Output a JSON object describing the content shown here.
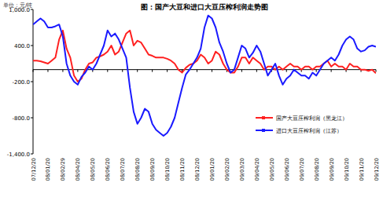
{
  "chart_data": {
    "type": "line",
    "title": "图：国产大豆和进口大豆压榨利润走势图",
    "y_label": "单位：元/吨",
    "categories": [
      "07/12/20",
      null,
      null,
      null,
      "08/01/20",
      null,
      null,
      null,
      "08/02/29",
      null,
      null,
      null,
      "08/04/20",
      null,
      null,
      null,
      "08/05/20",
      null,
      null,
      null,
      "08/06/20",
      null,
      null,
      null,
      "08/07/20",
      null,
      null,
      null,
      "08/08/20",
      null,
      null,
      null,
      "08/09/20",
      null,
      null,
      null,
      "08/10/20",
      null,
      null,
      null,
      "08/11/20",
      null,
      null,
      null,
      "08/12/20",
      null,
      null,
      null,
      "09/01/20",
      null,
      null,
      null,
      "09/02/20",
      null,
      null,
      null,
      "09/03/20",
      null,
      null,
      null,
      "09/04/20",
      null,
      null,
      null,
      "09/05/20",
      null,
      null,
      null,
      "09/06/20",
      null,
      null,
      null,
      "09/07/20",
      null,
      null,
      null,
      "09/08/20",
      null,
      null,
      null,
      "09/09/20",
      null,
      null,
      null,
      "09/10/20",
      null,
      null,
      null,
      "09/11/20",
      null,
      null,
      null,
      "09/12/20"
    ],
    "series": [
      {
        "name": "国产大豆压榨利润（黑龙江）",
        "color": "#ff2020",
        "values": [
          150,
          150,
          140,
          120,
          100,
          150,
          200,
          500,
          650,
          350,
          200,
          -100,
          -200,
          -150,
          0,
          100,
          120,
          200,
          220,
          250,
          300,
          400,
          250,
          300,
          450,
          600,
          650,
          400,
          480,
          450,
          350,
          250,
          230,
          200,
          200,
          200,
          180,
          150,
          100,
          0,
          -50,
          30,
          80,
          100,
          150,
          250,
          200,
          100,
          150,
          300,
          250,
          100,
          0,
          -50,
          -50,
          50,
          200,
          200,
          100,
          200,
          150,
          100,
          0,
          50,
          50,
          0,
          50,
          0,
          50,
          100,
          50,
          50,
          0,
          50,
          50,
          0,
          50,
          50,
          100,
          150,
          50,
          100,
          50,
          50,
          0,
          100,
          50,
          50,
          0,
          0,
          -20,
          0,
          -60
        ]
      },
      {
        "name": "进口大豆压榨利润（江苏）",
        "color": "#1a1aff",
        "values": [
          750,
          800,
          850,
          800,
          700,
          700,
          720,
          750,
          550,
          100,
          -100,
          -200,
          -250,
          -120,
          -50,
          50,
          0,
          100,
          250,
          400,
          650,
          550,
          600,
          500,
          350,
          200,
          -300,
          -700,
          -900,
          -800,
          -650,
          -700,
          -900,
          -1000,
          -1050,
          -1100,
          -1050,
          -950,
          -800,
          -550,
          -300,
          -80,
          0,
          100,
          200,
          350,
          700,
          900,
          850,
          700,
          450,
          300,
          100,
          -50,
          0,
          200,
          400,
          350,
          200,
          280,
          400,
          300,
          100,
          -100,
          0,
          100,
          -100,
          -250,
          -150,
          -100,
          0,
          -50,
          -100,
          -100,
          -150,
          -50,
          -100,
          0,
          100,
          150,
          200,
          150,
          250,
          400,
          500,
          550,
          500,
          350,
          300,
          320,
          380,
          400,
          380
        ]
      }
    ],
    "ylim": [
      -1400,
      1000
    ],
    "yticks": [
      {
        "value": 1000,
        "label": "1,000.0"
      },
      {
        "value": 400,
        "label": "400.0"
      },
      {
        "value": -200,
        "label": "-200.0"
      },
      {
        "value": -800,
        "label": "-800.0"
      },
      {
        "value": -1400,
        "label": "-1,400.0"
      }
    ],
    "grid": false,
    "legend": "lower right"
  }
}
